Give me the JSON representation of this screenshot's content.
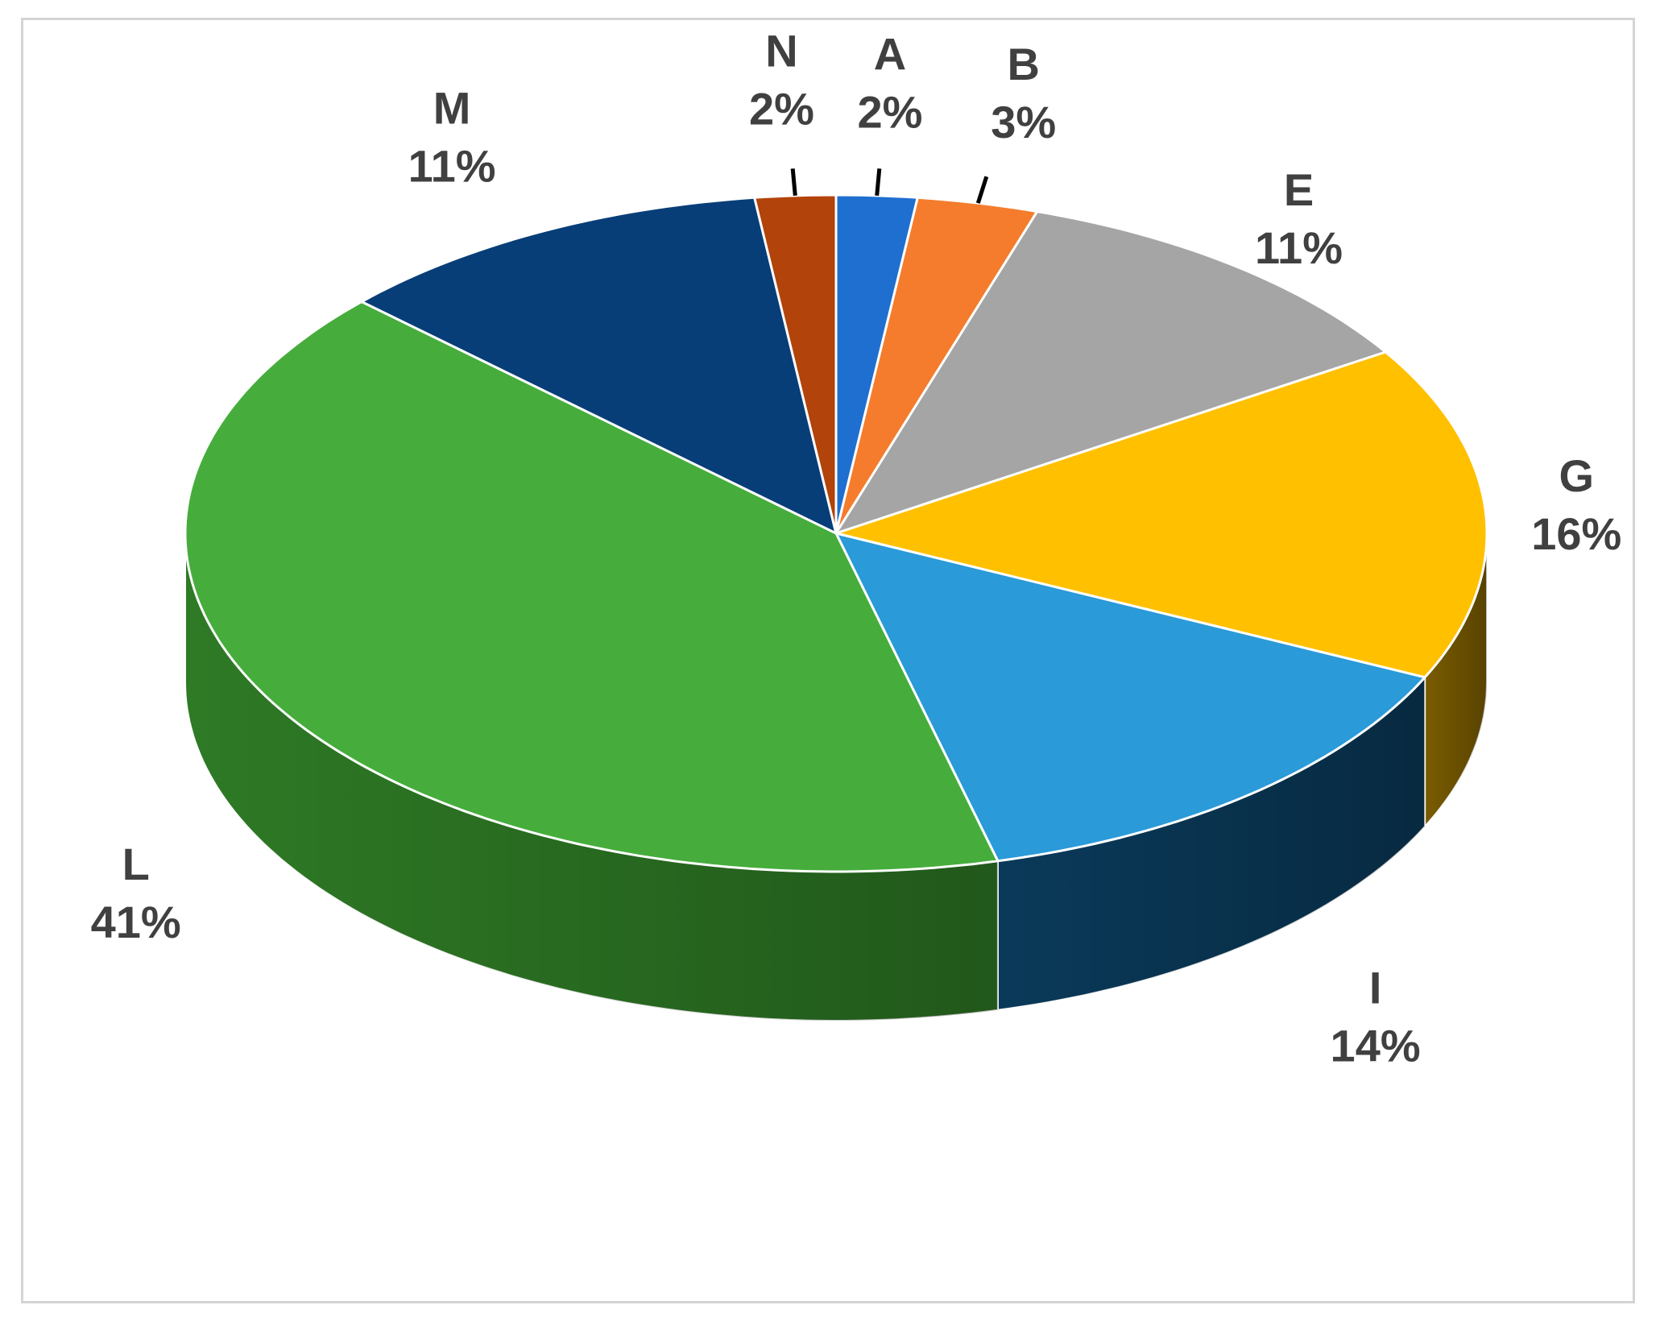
{
  "chart_data": {
    "type": "pie",
    "style": "3d",
    "title": "",
    "slices": [
      {
        "label": "A",
        "value": 2,
        "percent_text": "2%",
        "color": "#1f6fd0",
        "side_color": "#134a8f"
      },
      {
        "label": "B",
        "value": 3,
        "percent_text": "3%",
        "color": "#f47c2c",
        "side_color": "#a94e12"
      },
      {
        "label": "E",
        "value": 11,
        "percent_text": "11%",
        "color": "#a5a5a5",
        "side_color": "#6b6b6b"
      },
      {
        "label": "G",
        "value": 16,
        "percent_text": "16%",
        "color": "#ffc000",
        "side_color": "#7a5c00"
      },
      {
        "label": "I",
        "value": 14,
        "percent_text": "14%",
        "color": "#2a9ad8",
        "side_color": "#0a3a5a"
      },
      {
        "label": "L",
        "value": 41,
        "percent_text": "41%",
        "color": "#46ad3c",
        "side_color": "#2e7a25"
      },
      {
        "label": "M",
        "value": 11,
        "percent_text": "11%",
        "color": "#083e78",
        "side_color": "#052a52"
      },
      {
        "label": "N",
        "value": 2,
        "percent_text": "2%",
        "color": "#b2430a",
        "side_color": "#7a2d05"
      }
    ],
    "legend": "none",
    "data_labels": "outside"
  }
}
